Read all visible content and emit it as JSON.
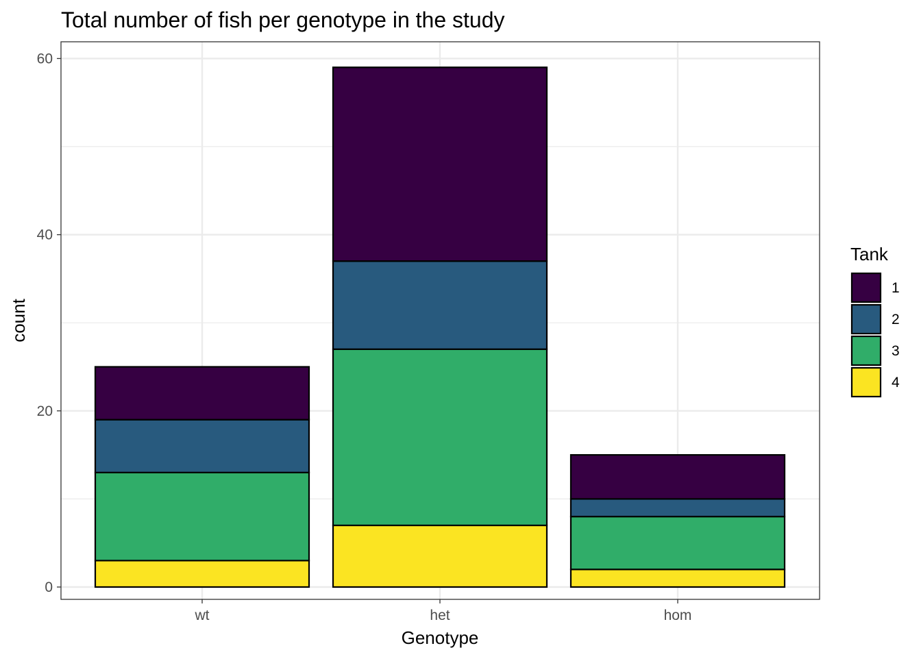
{
  "chart_data": {
    "type": "bar",
    "stacked": true,
    "title": "Total number of fish per genotype in the study",
    "xlabel": "Genotype",
    "ylabel": "count",
    "categories": [
      "wt",
      "het",
      "hom"
    ],
    "ylim": [
      -1.4,
      61.9
    ],
    "yticks": [
      0,
      20,
      40,
      60
    ],
    "grid": true,
    "legend": {
      "title": "Tank",
      "position": "right"
    },
    "series": [
      {
        "name": "1",
        "color": "#360042",
        "values": [
          6,
          22,
          5
        ]
      },
      {
        "name": "2",
        "color": "#285A7E",
        "values": [
          6,
          10,
          2
        ]
      },
      {
        "name": "3",
        "color": "#30AD69",
        "values": [
          10,
          20,
          6
        ]
      },
      {
        "name": "4",
        "color": "#FBE422",
        "values": [
          3,
          7,
          2
        ]
      }
    ],
    "stack_order_bottom_to_top": [
      "4",
      "3",
      "2",
      "1"
    ]
  }
}
